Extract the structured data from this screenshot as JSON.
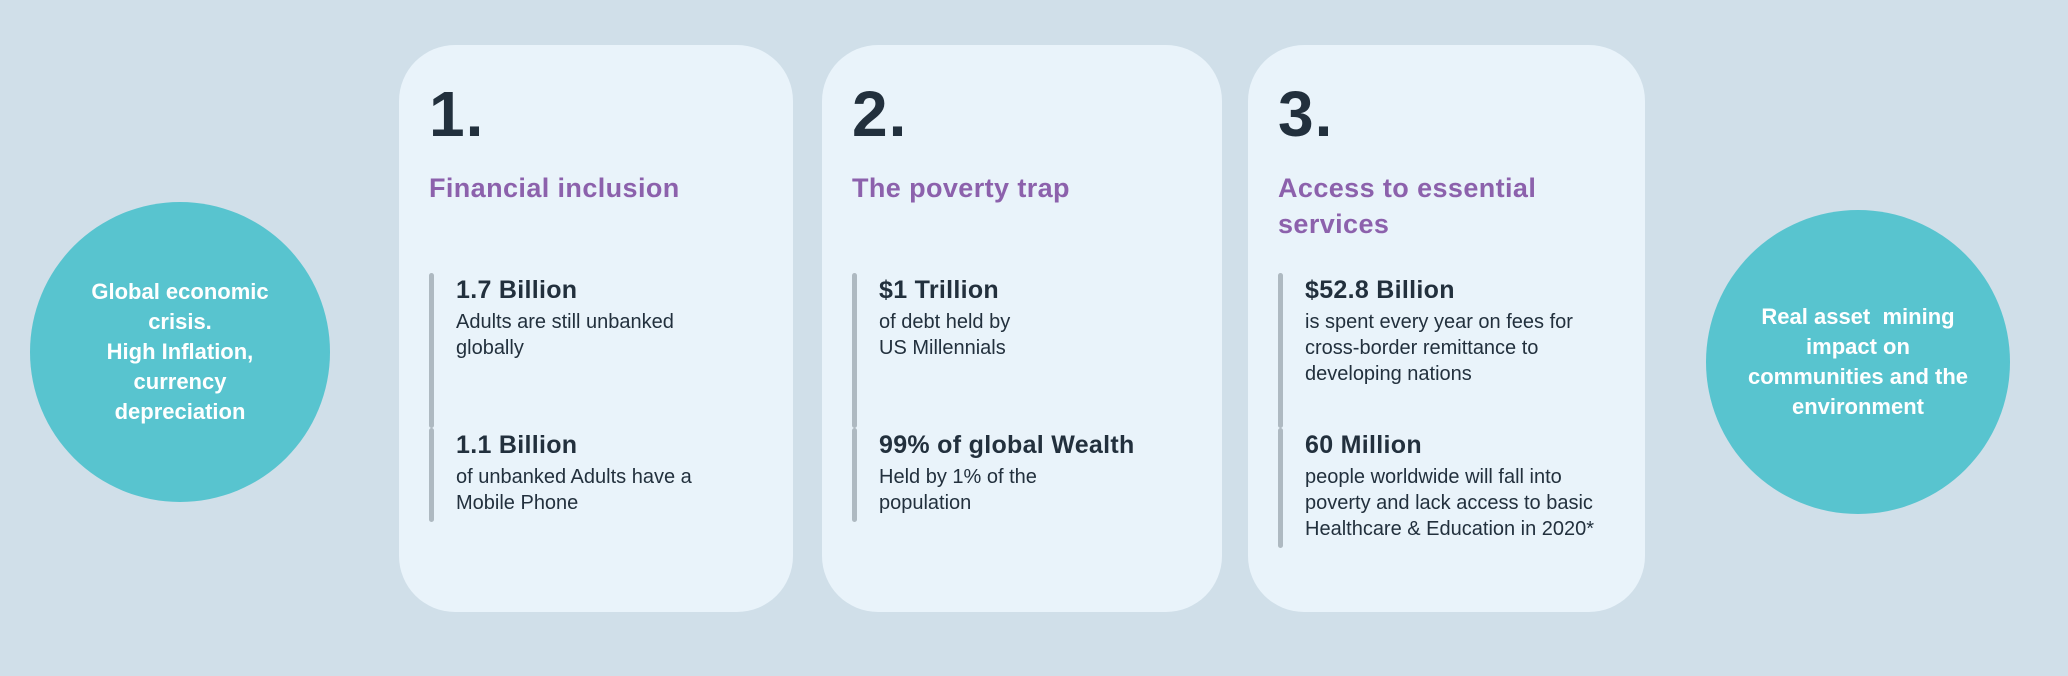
{
  "colors": {
    "background": "#d0dfe9",
    "card": "#e9f3fa",
    "circle": "#58c4cf",
    "heading-purple": "#8c61ac",
    "text-dark": "#22303d",
    "accent-bar": "#aeb9c1",
    "circle-text": "#ffffff"
  },
  "left_circle": {
    "text": "Global economic\ncrisis.\nHigh Inflation,\ncurrency\ndepreciation"
  },
  "right_circle": {
    "text": "Real asset  mining\nimpact on\ncommunities and the\nenvironment"
  },
  "cards": [
    {
      "number": "1.",
      "title": "Financial inclusion",
      "stats": [
        {
          "value": "1.7 Billion",
          "description": "Adults are still unbanked\nglobally"
        },
        {
          "value": "1.1 Billion",
          "description": "of unbanked Adults have a\nMobile Phone"
        }
      ]
    },
    {
      "number": "2.",
      "title": "The poverty trap",
      "stats": [
        {
          "value": "$1 Trillion",
          "description": "of debt held by\nUS Millennials"
        },
        {
          "value": "99% of global Wealth",
          "description": "Held by 1% of the\npopulation"
        }
      ]
    },
    {
      "number": "3.",
      "title": "Access to essential\nservices",
      "stats": [
        {
          "value": "$52.8 Billion",
          "description": "is spent every year on fees for\ncross-border remittance to\ndeveloping nations"
        },
        {
          "value": "60 Million",
          "description": "people worldwide will fall into\npoverty and lack access to basic\nHealthcare & Education in 2020*"
        }
      ]
    }
  ]
}
